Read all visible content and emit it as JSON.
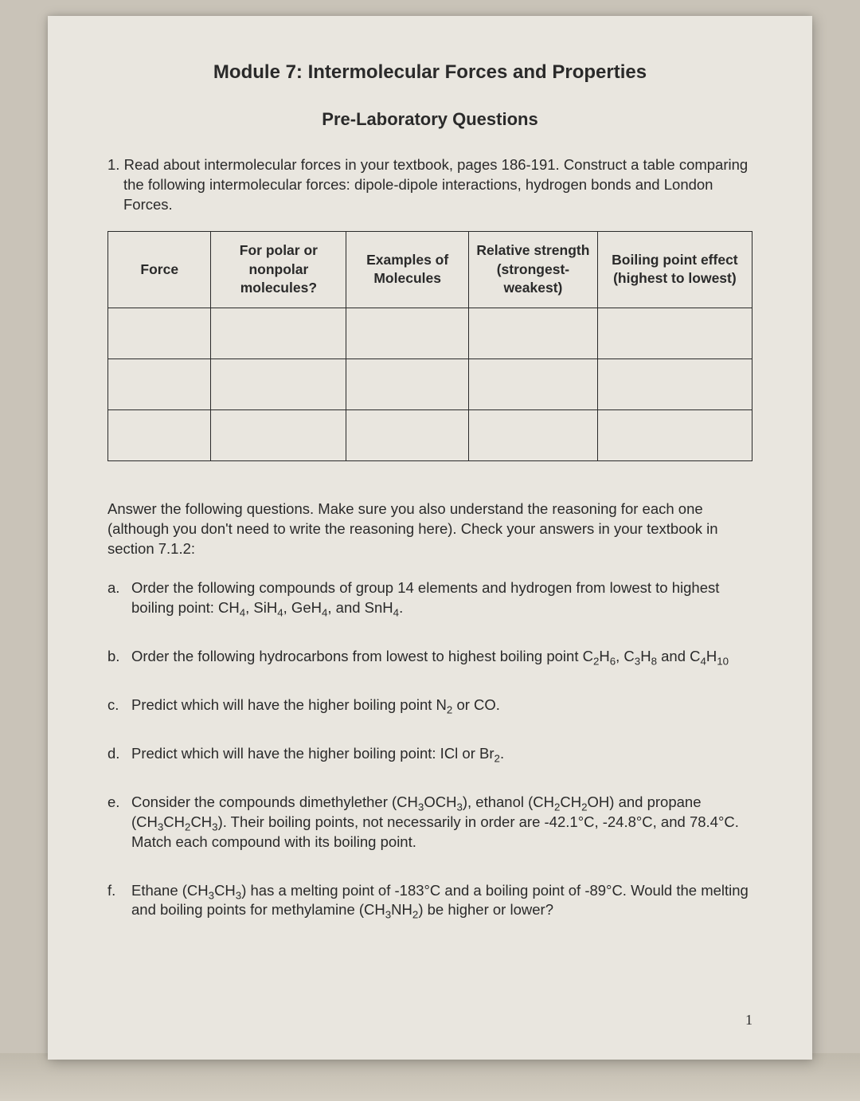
{
  "module_title": "Module 7: Intermolecular Forces and Properties",
  "subtitle": "Pre-Laboratory Questions",
  "q1": {
    "number": "1.",
    "text": "Read about intermolecular forces in your textbook, pages 186-191. Construct a table comparing the following intermolecular forces: dipole-dipole interactions, hydrogen bonds and London Forces."
  },
  "table": {
    "columns": [
      "Force",
      "For polar or nonpolar molecules?",
      "Examples of Molecules",
      "Relative strength (strongest-weakest)",
      "Boiling point effect (highest to lowest)"
    ],
    "rows": [
      [
        "",
        "",
        "",
        "",
        ""
      ],
      [
        "",
        "",
        "",
        "",
        ""
      ],
      [
        "",
        "",
        "",
        "",
        ""
      ]
    ],
    "col_widths_pct": [
      16,
      21,
      19,
      20,
      24
    ]
  },
  "instructions": "Answer the following questions. Make sure you also understand the reasoning for each one (although you don't need to write the reasoning here). Check your answers in your textbook in section 7.1.2:",
  "items": [
    {
      "letter": "a.",
      "html": "Order the following compounds of group 14 elements and hydrogen from lowest to highest boiling point: CH<sub>4</sub>, SiH<sub>4</sub>, GeH<sub>4</sub>, and SnH<sub>4</sub>."
    },
    {
      "letter": "b.",
      "html": "Order the following hydrocarbons from lowest to highest boiling point C<sub>2</sub>H<sub>6</sub>, C<sub>3</sub>H<sub>8</sub> and C<sub>4</sub>H<sub>10</sub>"
    },
    {
      "letter": "c.",
      "html": "Predict which will have the higher boiling point N<sub>2</sub> or CO."
    },
    {
      "letter": "d.",
      "html": "Predict which will have the higher boiling point: ICl or Br<sub>2</sub>."
    },
    {
      "letter": "e.",
      "html": "Consider the compounds dimethylether (CH<sub>3</sub>OCH<sub>3</sub>), ethanol (CH<sub>2</sub>CH<sub>2</sub>OH) and propane (CH<sub>3</sub>CH<sub>2</sub>CH<sub>3</sub>). Their boiling points, not necessarily in order are -42.1°C, -24.8°C, and 78.4°C. Match each compound with its boiling point."
    },
    {
      "letter": "f.",
      "html": "Ethane (CH<sub>3</sub>CH<sub>3</sub>) has a melting point of -183°C and a boiling point of -89°C. Would the melting and boiling points for methylamine (CH<sub>3</sub>NH<sub>2</sub>) be higher or lower?"
    }
  ],
  "page_number": "1",
  "colors": {
    "background": "#c9c3b8",
    "paper": "#e9e6df",
    "text": "#2a2a2a",
    "border": "#2a2a2a"
  }
}
